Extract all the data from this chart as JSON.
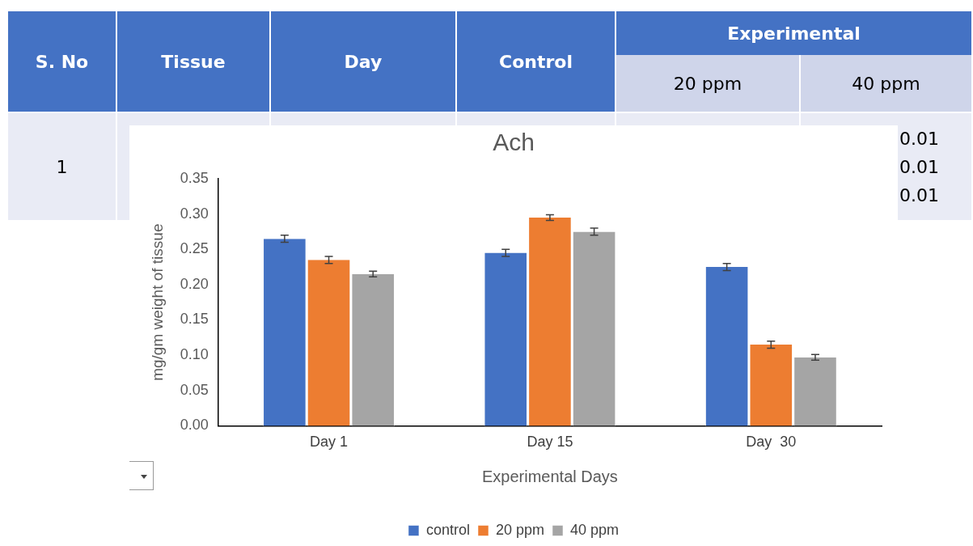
{
  "chart_data": {
    "type": "bar",
    "title": "Ach",
    "xlabel": "Experimental Days",
    "ylabel": "mg/gm weight of tissue",
    "categories": [
      "Day 1",
      "Day 15",
      "Day  30"
    ],
    "series": [
      {
        "name": "control",
        "color": "#4472c4",
        "values": [
          0.265,
          0.245,
          0.225
        ],
        "errors": [
          0.005,
          0.005,
          0.005
        ]
      },
      {
        "name": "20 ppm",
        "color": "#ed7d31",
        "values": [
          0.235,
          0.295,
          0.115
        ],
        "errors": [
          0.005,
          0.004,
          0.005
        ]
      },
      {
        "name": "40 ppm",
        "color": "#a5a5a5",
        "values": [
          0.215,
          0.275,
          0.097
        ],
        "errors": [
          0.004,
          0.005,
          0.004
        ]
      }
    ],
    "ylim": [
      0,
      0.35
    ],
    "yticks": [
      {
        "value": 0,
        "label": "0.00"
      },
      {
        "value": 0.05,
        "label": "0.05"
      },
      {
        "value": 0.1,
        "label": "0.10"
      },
      {
        "value": 0.15,
        "label": "0.15"
      },
      {
        "value": 0.2,
        "label": "0.20"
      },
      {
        "value": 0.25,
        "label": "0.25"
      },
      {
        "value": 0.3,
        "label": "0.30"
      },
      {
        "value": 0.35,
        "label": "0.35"
      }
    ],
    "grid": false,
    "legend": "bottom",
    "annotations": [
      "S. No",
      "Tissue",
      "Day",
      "Control",
      "Experimental",
      "20 ppm",
      "40 ppm",
      "1",
      "0.01",
      "0.01",
      "0.01"
    ]
  }
}
